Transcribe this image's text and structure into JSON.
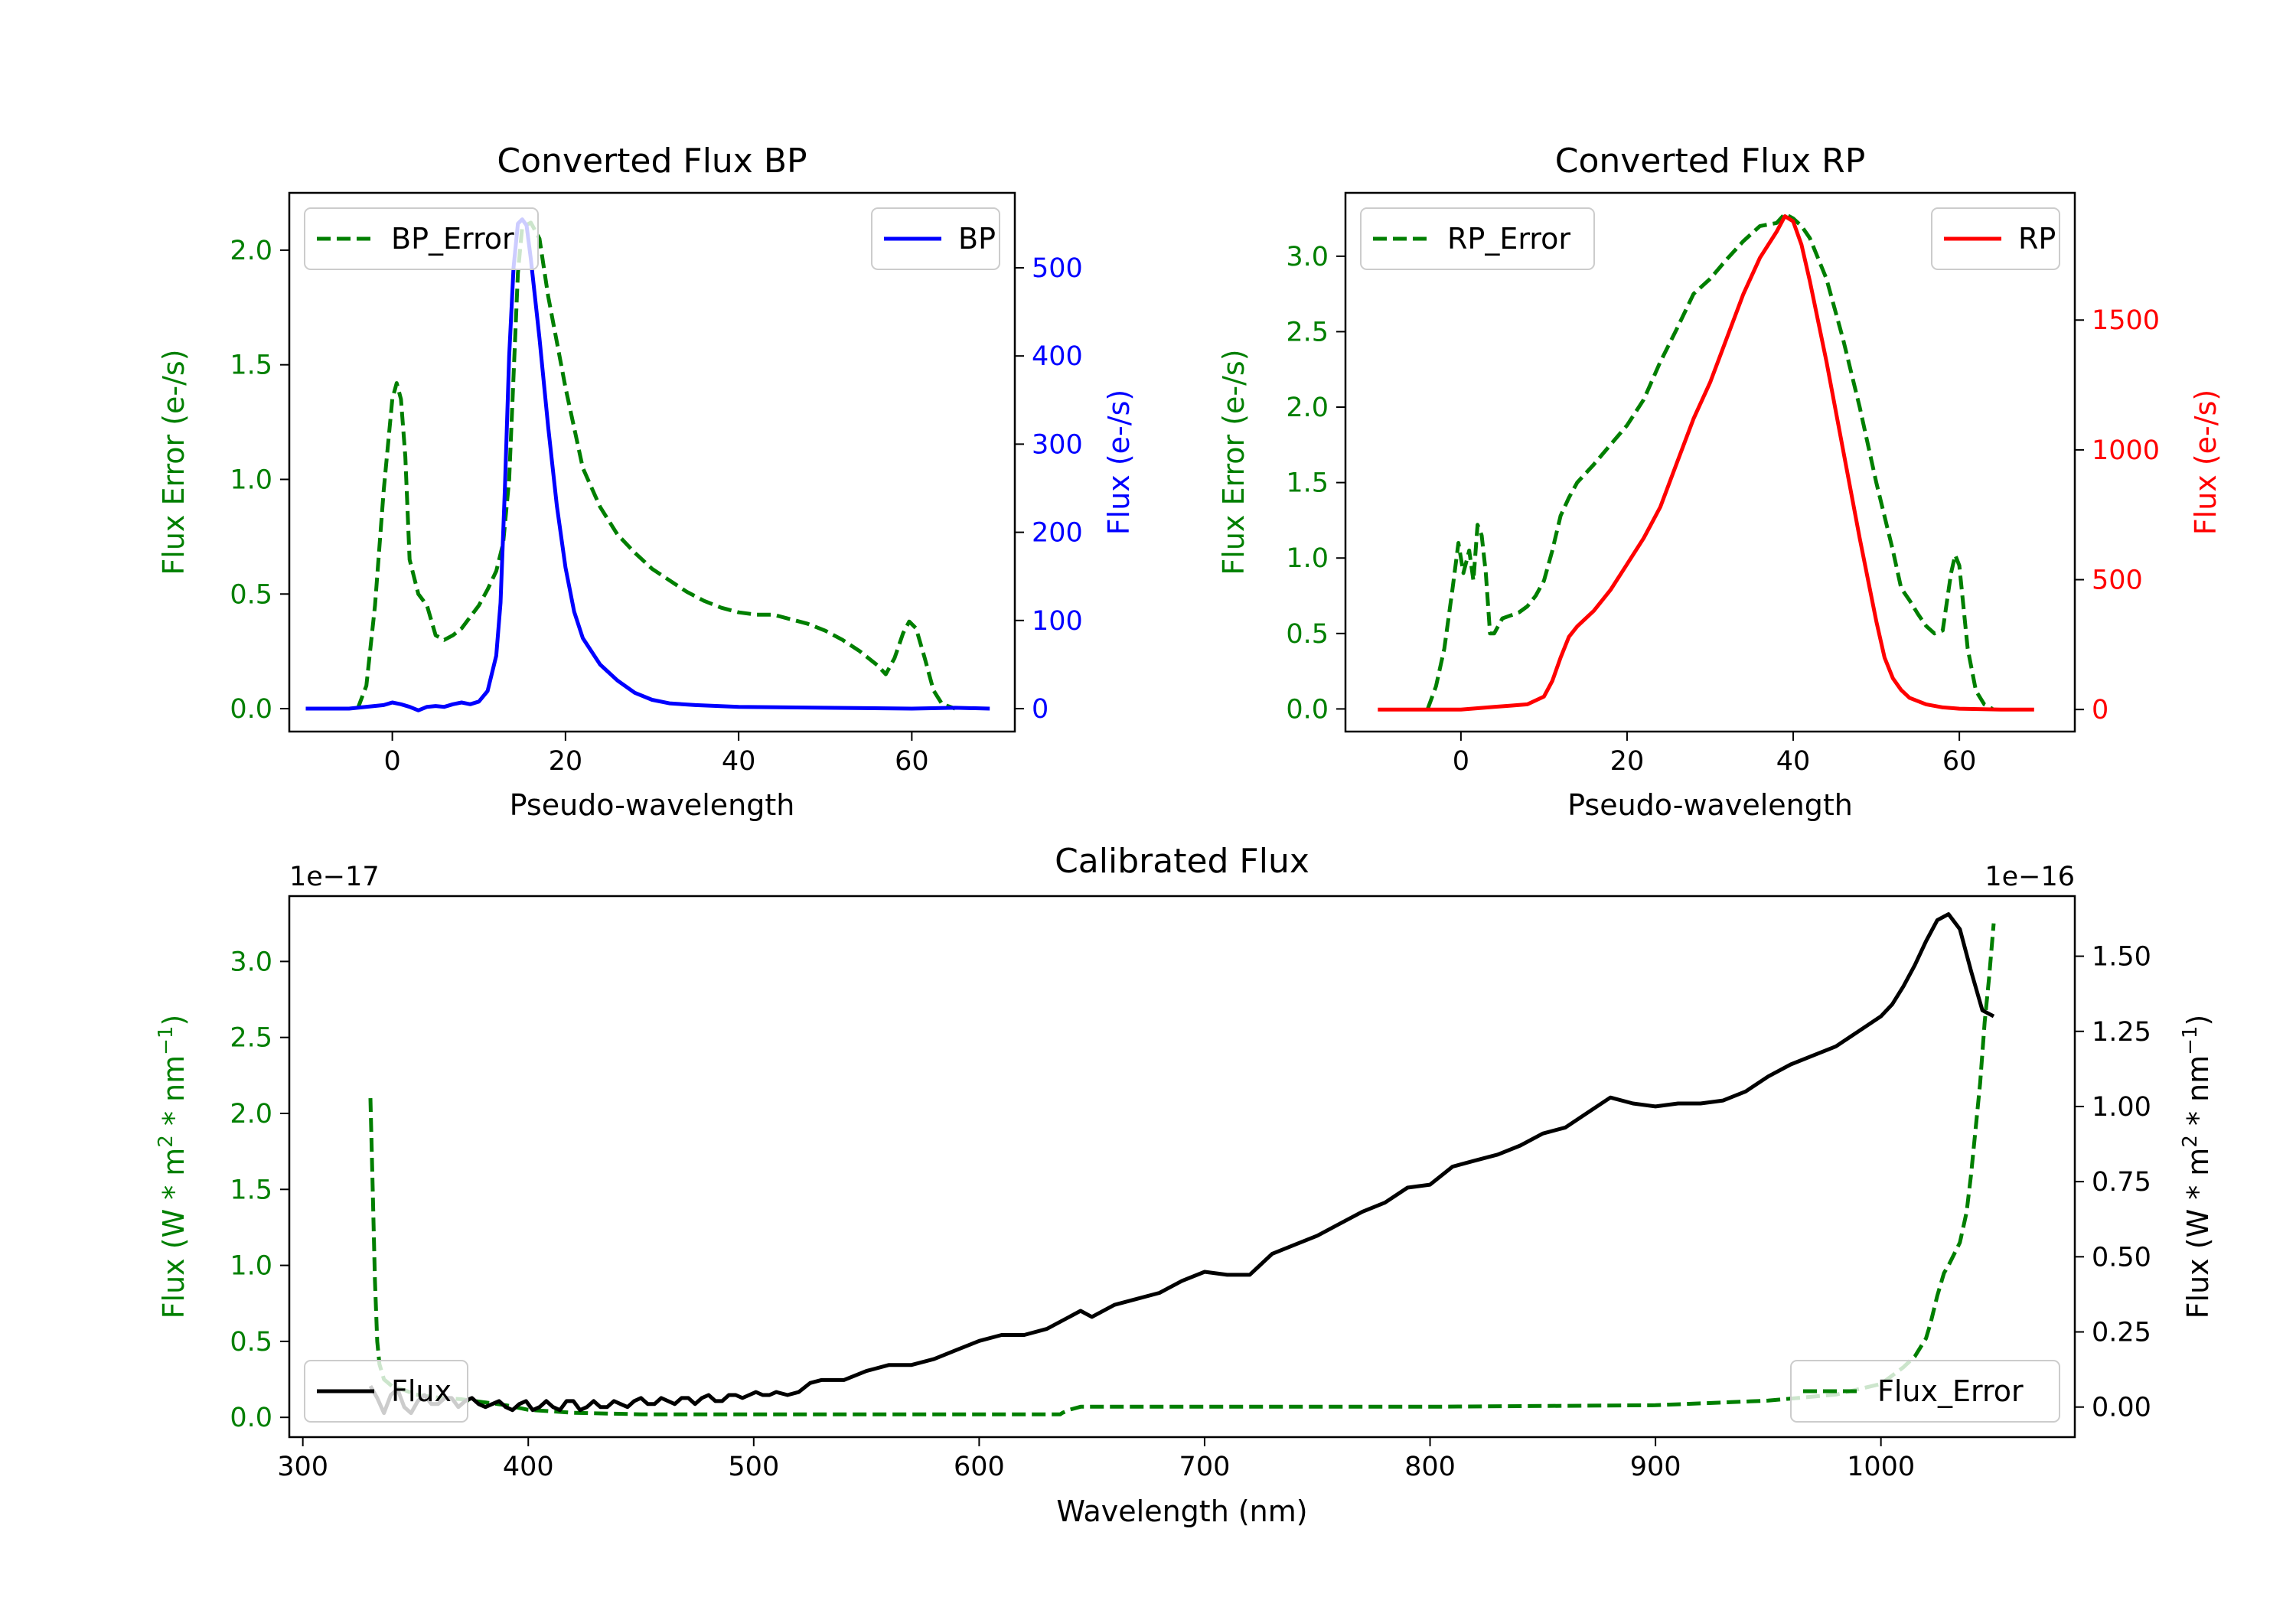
{
  "colors": {
    "bp": "#0000ff",
    "rp": "#ff0000",
    "error": "#007f00",
    "flux": "#000000"
  },
  "chart_data": [
    {
      "id": "bp",
      "type": "line",
      "title": "Converted Flux BP",
      "xlabel": "Pseudo-wavelength",
      "ylabel_left": "Flux Error (e-/s)",
      "ylabel_right": "Flux (e-/s)",
      "xlim": [
        -11.9,
        71.9
      ],
      "ylim_left": [
        -0.1,
        2.25
      ],
      "ylim_right": [
        -26,
        585
      ],
      "xticks": [
        0,
        20,
        40,
        60
      ],
      "xtick_labels": [
        "0",
        "20",
        "40",
        "60"
      ],
      "yticks_left": [
        0.0,
        0.5,
        1.0,
        1.5,
        2.0
      ],
      "ytick_labels_left": [
        "0.0",
        "0.5",
        "1.0",
        "1.5",
        "2.0"
      ],
      "yticks_right": [
        0,
        100,
        200,
        300,
        400,
        500
      ],
      "ytick_labels_right": [
        "0",
        "100",
        "200",
        "300",
        "400",
        "500"
      ],
      "series": [
        {
          "name": "BP_Error",
          "axis": "left",
          "style": "dashed",
          "color": "#007f00",
          "x": [
            -4,
            -3,
            -2,
            -1,
            0,
            0.5,
            1,
            1.5,
            2,
            3,
            4,
            5,
            6,
            7,
            8,
            9,
            10,
            11,
            12,
            12.8,
            13.5,
            14,
            14.5,
            15,
            16,
            17,
            18,
            20,
            22,
            24,
            26,
            28,
            30,
            32,
            34,
            36,
            38,
            40,
            42,
            44,
            46,
            48,
            50,
            52,
            54,
            56,
            57,
            58,
            59,
            59.7,
            60.5,
            61.5,
            62.5,
            63.5,
            65
          ],
          "y": [
            0.0,
            0.1,
            0.45,
            0.95,
            1.35,
            1.42,
            1.35,
            1.1,
            0.65,
            0.5,
            0.45,
            0.32,
            0.3,
            0.32,
            0.35,
            0.4,
            0.45,
            0.52,
            0.6,
            0.72,
            1.0,
            1.45,
            1.9,
            2.1,
            2.12,
            2.05,
            1.8,
            1.4,
            1.05,
            0.88,
            0.76,
            0.68,
            0.61,
            0.56,
            0.51,
            0.47,
            0.44,
            0.42,
            0.41,
            0.41,
            0.39,
            0.37,
            0.34,
            0.3,
            0.25,
            0.19,
            0.15,
            0.22,
            0.33,
            0.38,
            0.35,
            0.22,
            0.08,
            0.02,
            0.0
          ]
        },
        {
          "name": "BP",
          "axis": "right",
          "style": "solid",
          "color": "#0000ff",
          "x": [
            -10,
            -5,
            -1,
            0,
            1,
            2,
            3,
            4,
            5,
            6,
            7,
            8,
            9,
            10,
            11,
            12,
            12.5,
            13,
            13.5,
            14,
            14.5,
            15,
            15.5,
            16,
            17,
            18,
            19,
            20,
            21,
            22,
            24,
            26,
            28,
            30,
            32,
            35,
            40,
            50,
            60,
            65,
            69
          ],
          "y": [
            0,
            0,
            4,
            7,
            5,
            2,
            -2,
            2,
            3,
            2,
            5,
            7,
            5,
            8,
            20,
            60,
            120,
            250,
            400,
            500,
            550,
            555,
            548,
            510,
            420,
            320,
            230,
            160,
            110,
            80,
            50,
            32,
            18,
            10,
            6,
            4,
            2,
            1,
            0,
            1,
            0
          ]
        }
      ],
      "legend_left": {
        "label": "BP_Error",
        "loc": "upper left"
      },
      "legend_right": {
        "label": "BP",
        "loc": "upper right"
      }
    },
    {
      "id": "rp",
      "type": "line",
      "title": "Converted Flux RP",
      "xlabel": "Pseudo-wavelength",
      "ylabel_left": "Flux Error (e-/s)",
      "ylabel_right": "Flux (e-/s)",
      "xlim": [
        -13.9,
        73.9
      ],
      "ylim_left": [
        -0.15,
        3.42
      ],
      "ylim_right": [
        -85,
        1990
      ],
      "xticks": [
        0,
        20,
        40,
        60
      ],
      "xtick_labels": [
        "0",
        "20",
        "40",
        "60"
      ],
      "yticks_left": [
        0.0,
        0.5,
        1.0,
        1.5,
        2.0,
        2.5,
        3.0
      ],
      "ytick_labels_left": [
        "0.0",
        "0.5",
        "1.0",
        "1.5",
        "2.0",
        "2.5",
        "3.0"
      ],
      "yticks_right": [
        0,
        500,
        1000,
        1500
      ],
      "ytick_labels_right": [
        "0",
        "500",
        "1000",
        "1500"
      ],
      "series": [
        {
          "name": "RP_Error",
          "axis": "left",
          "style": "dashed",
          "color": "#007f00",
          "x": [
            -4,
            -3,
            -2,
            -1,
            -0.3,
            0.3,
            1,
            1.5,
            2,
            2.5,
            3,
            3.5,
            4,
            5,
            6,
            7,
            8,
            9,
            10,
            11,
            12,
            13,
            14,
            16,
            18,
            20,
            22,
            24,
            26,
            28,
            30,
            32,
            34,
            36,
            38,
            39,
            40,
            41,
            42,
            44,
            46,
            48,
            50,
            52,
            53,
            54,
            55,
            56,
            57,
            58,
            59,
            59.5,
            60,
            61,
            62,
            63,
            64
          ],
          "y": [
            0.0,
            0.15,
            0.4,
            0.8,
            1.1,
            0.9,
            1.05,
            0.85,
            1.22,
            1.15,
            0.9,
            0.5,
            0.5,
            0.6,
            0.62,
            0.64,
            0.68,
            0.75,
            0.85,
            1.05,
            1.28,
            1.4,
            1.5,
            1.62,
            1.75,
            1.88,
            2.05,
            2.3,
            2.52,
            2.75,
            2.85,
            2.98,
            3.1,
            3.2,
            3.22,
            3.28,
            3.25,
            3.2,
            3.12,
            2.85,
            2.45,
            2.0,
            1.5,
            1.05,
            0.8,
            0.72,
            0.63,
            0.55,
            0.5,
            0.52,
            0.9,
            1.02,
            0.95,
            0.4,
            0.12,
            0.03,
            0.0
          ]
        },
        {
          "name": "RP",
          "axis": "right",
          "style": "solid",
          "color": "#ff0000",
          "x": [
            -10,
            -5,
            0,
            2,
            4,
            6,
            8,
            10,
            11,
            12,
            13,
            14,
            16,
            18,
            20,
            22,
            24,
            26,
            28,
            30,
            32,
            34,
            36,
            38,
            39,
            40,
            41,
            42,
            44,
            46,
            48,
            50,
            51,
            52,
            53,
            54,
            56,
            58,
            60,
            65,
            69
          ],
          "y": [
            0,
            0,
            0,
            5,
            10,
            15,
            20,
            50,
            110,
            200,
            280,
            320,
            380,
            460,
            560,
            660,
            780,
            950,
            1120,
            1260,
            1430,
            1600,
            1740,
            1840,
            1900,
            1880,
            1790,
            1650,
            1340,
            1000,
            660,
            340,
            200,
            120,
            75,
            45,
            20,
            8,
            3,
            0,
            0
          ]
        }
      ],
      "legend_left": {
        "label": "RP_Error",
        "loc": "upper left"
      },
      "legend_right": {
        "label": "RP",
        "loc": "upper right"
      }
    },
    {
      "id": "cal",
      "type": "line",
      "title": "Calibrated Flux",
      "xlabel": "Wavelength (nm)",
      "ylabel_left_pre": "Flux (W * m",
      "ylabel_left_mid": " * nm",
      "ylabel_left_post": ")",
      "ylabel_left_sup1": "2",
      "ylabel_left_sup2": "−1",
      "ylabel_right_pre": "Flux (W * m",
      "ylabel_right_mid": " * nm",
      "ylabel_right_post": ")",
      "ylabel_right_sup1": "2",
      "ylabel_right_sup2": "−1",
      "offset_left": "1e−17",
      "offset_right": "1e−16",
      "xlim": [
        294,
        1086
      ],
      "ylim_left": [
        -0.13,
        3.43
      ],
      "ylim_right": [
        -0.1,
        1.7
      ],
      "xticks": [
        300,
        400,
        500,
        600,
        700,
        800,
        900,
        1000
      ],
      "xtick_labels": [
        "300",
        "400",
        "500",
        "600",
        "700",
        "800",
        "900",
        "1000"
      ],
      "yticks_left": [
        0.0,
        0.5,
        1.0,
        1.5,
        2.0,
        2.5,
        3.0
      ],
      "ytick_labels_left": [
        "0.0",
        "0.5",
        "1.0",
        "1.5",
        "2.0",
        "2.5",
        "3.0"
      ],
      "yticks_right": [
        0.0,
        0.25,
        0.5,
        0.75,
        1.0,
        1.25,
        1.5
      ],
      "ytick_labels_right": [
        "0.00",
        "0.25",
        "0.50",
        "0.75",
        "1.00",
        "1.25",
        "1.50"
      ],
      "series": [
        {
          "name": "Flux_Error",
          "axis": "left",
          "style": "dashed",
          "color": "#007f00",
          "x": [
            330,
            331,
            332,
            333,
            334,
            336,
            340,
            345,
            350,
            360,
            370,
            380,
            390,
            400,
            420,
            450,
            500,
            550,
            600,
            636,
            637,
            640,
            645,
            700,
            800,
            900,
            950,
            980,
            1000,
            1010,
            1015,
            1020,
            1022,
            1025,
            1028,
            1030,
            1035,
            1038,
            1040,
            1042,
            1044,
            1046,
            1048,
            1050
          ],
          "y": [
            2.1,
            1.5,
            0.9,
            0.5,
            0.35,
            0.25,
            0.2,
            0.18,
            0.15,
            0.13,
            0.12,
            0.1,
            0.08,
            0.05,
            0.03,
            0.02,
            0.02,
            0.02,
            0.02,
            0.02,
            0.03,
            0.05,
            0.07,
            0.07,
            0.07,
            0.08,
            0.11,
            0.15,
            0.22,
            0.33,
            0.4,
            0.52,
            0.62,
            0.8,
            0.95,
            1.0,
            1.15,
            1.35,
            1.6,
            1.9,
            2.2,
            2.6,
            2.9,
            3.25
          ]
        },
        {
          "name": "Flux",
          "axis": "right",
          "style": "solid",
          "color": "#000000",
          "x": [
            330,
            333,
            336,
            339,
            342,
            345,
            348,
            351,
            354,
            357,
            360,
            363,
            366,
            369,
            372,
            375,
            378,
            381,
            384,
            387,
            390,
            393,
            396,
            399,
            402,
            405,
            408,
            411,
            414,
            417,
            420,
            423,
            426,
            429,
            432,
            435,
            438,
            441,
            444,
            447,
            450,
            453,
            456,
            459,
            462,
            465,
            468,
            471,
            474,
            477,
            480,
            483,
            486,
            489,
            492,
            495,
            498,
            501,
            504,
            507,
            510,
            515,
            520,
            525,
            530,
            540,
            550,
            560,
            570,
            580,
            590,
            600,
            610,
            620,
            630,
            640,
            645,
            650,
            660,
            670,
            680,
            690,
            700,
            710,
            720,
            730,
            740,
            750,
            760,
            770,
            780,
            790,
            800,
            810,
            820,
            830,
            840,
            850,
            860,
            870,
            880,
            890,
            900,
            910,
            920,
            930,
            940,
            950,
            960,
            970,
            980,
            990,
            1000,
            1005,
            1010,
            1015,
            1020,
            1025,
            1030,
            1035,
            1040,
            1045,
            1050
          ],
          "y": [
            0.07,
            0.03,
            -0.02,
            0.04,
            0.06,
            0.0,
            -0.02,
            0.02,
            0.04,
            0.01,
            0.01,
            0.03,
            0.03,
            0.0,
            0.02,
            0.03,
            0.01,
            0.0,
            0.01,
            0.02,
            0.0,
            -0.01,
            0.01,
            0.02,
            -0.01,
            0.0,
            0.02,
            0.0,
            -0.01,
            0.02,
            0.02,
            -0.01,
            0.0,
            0.02,
            0.0,
            0.0,
            0.02,
            0.01,
            0.0,
            0.02,
            0.03,
            0.01,
            0.01,
            0.03,
            0.02,
            0.01,
            0.03,
            0.03,
            0.01,
            0.03,
            0.04,
            0.02,
            0.02,
            0.04,
            0.04,
            0.03,
            0.04,
            0.05,
            0.04,
            0.04,
            0.05,
            0.04,
            0.05,
            0.08,
            0.09,
            0.09,
            0.12,
            0.14,
            0.14,
            0.16,
            0.19,
            0.22,
            0.24,
            0.24,
            0.26,
            0.3,
            0.32,
            0.3,
            0.34,
            0.36,
            0.38,
            0.42,
            0.45,
            0.44,
            0.44,
            0.51,
            0.54,
            0.57,
            0.61,
            0.65,
            0.68,
            0.73,
            0.74,
            0.8,
            0.82,
            0.84,
            0.87,
            0.91,
            0.93,
            0.98,
            1.03,
            1.01,
            1.0,
            1.01,
            1.01,
            1.02,
            1.05,
            1.1,
            1.14,
            1.17,
            1.2,
            1.25,
            1.3,
            1.34,
            1.4,
            1.47,
            1.55,
            1.62,
            1.64,
            1.59,
            1.45,
            1.32,
            1.3
          ]
        }
      ],
      "legend_left": {
        "label": "Flux",
        "loc": "lower left"
      },
      "legend_right": {
        "label": "Flux_Error",
        "loc": "lower right"
      }
    }
  ]
}
